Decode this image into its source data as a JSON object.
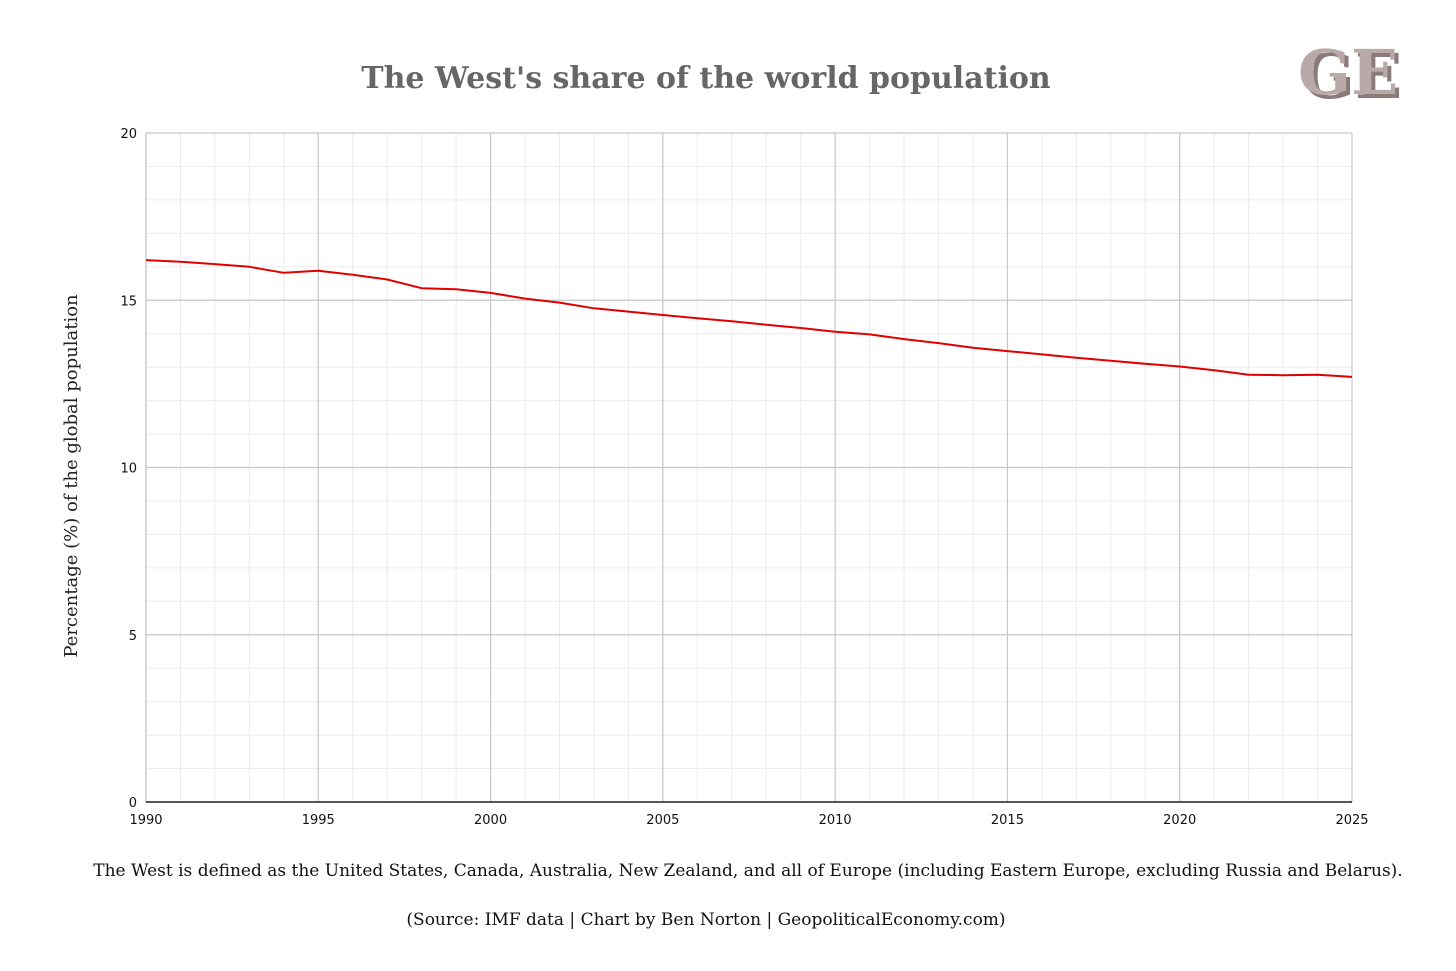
{
  "logo": {
    "text": "GE",
    "primary": "#b9a9a9",
    "shadow": "#ffffff"
  },
  "colors": {
    "line": "#e00000",
    "grid_major": "#c8c8c8",
    "grid_minor": "#ececec",
    "axis": "#222222"
  },
  "caption": "The West is defined as the United States, Canada, Australia, New Zealand, and all of Europe (including Eastern Europe, excluding Russia and Belarus).",
  "source": "(Source: IMF data | Chart by Ben Norton | GeopoliticalEconomy.com)",
  "chart_data": {
    "type": "line",
    "title": "The West's share of the world population",
    "xlabel": "",
    "ylabel": "Percentage (%) of the global population",
    "xlim": [
      1990,
      2025
    ],
    "ylim": [
      0,
      20
    ],
    "x_ticks": [
      "1990",
      "1995",
      "2000",
      "2005",
      "2010",
      "2015",
      "2020",
      "2025"
    ],
    "y_ticks": [
      "0",
      "5",
      "10",
      "15",
      "20"
    ],
    "grid": true,
    "legend": "none",
    "series": [
      {
        "name": "The West",
        "x": [
          1990,
          1991,
          1992,
          1993,
          1994,
          1995,
          1996,
          1997,
          1998,
          1999,
          2000,
          2001,
          2002,
          2003,
          2004,
          2005,
          2006,
          2007,
          2008,
          2009,
          2010,
          2011,
          2012,
          2013,
          2014,
          2015,
          2016,
          2017,
          2018,
          2019,
          2020,
          2021,
          2022,
          2023,
          2024,
          2025
        ],
        "values": [
          16.2,
          16.15,
          16.08,
          16.0,
          15.82,
          15.88,
          15.76,
          15.62,
          15.36,
          15.33,
          15.22,
          15.05,
          14.93,
          14.76,
          14.66,
          14.56,
          14.46,
          14.37,
          14.27,
          14.17,
          14.06,
          13.98,
          13.84,
          13.72,
          13.58,
          13.48,
          13.38,
          13.28,
          13.19,
          13.1,
          13.02,
          12.91,
          12.77,
          12.76,
          12.77,
          12.71
        ]
      }
    ]
  }
}
